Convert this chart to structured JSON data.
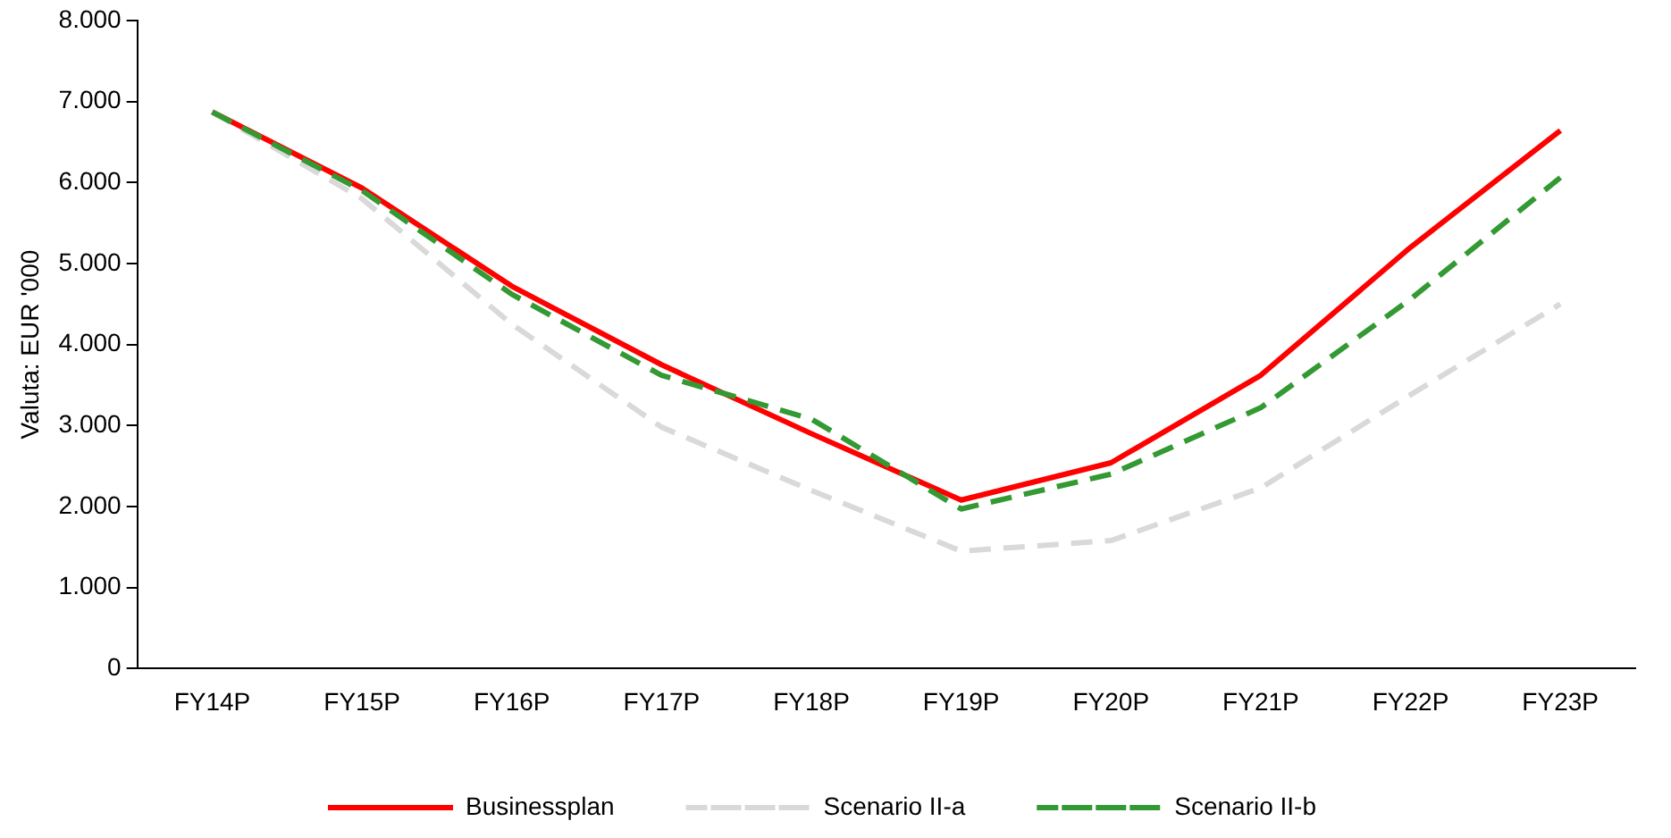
{
  "chart_data": {
    "type": "line",
    "ylabel": "Valuta: EUR '000",
    "categories": [
      "FY14P",
      "FY15P",
      "FY16P",
      "FY17P",
      "FY18P",
      "FY19P",
      "FY20P",
      "FY21P",
      "FY22P",
      "FY23P"
    ],
    "series": [
      {
        "name": "Businessplan",
        "color": "#ff0000",
        "line_style": "solid",
        "values": [
          6870,
          5930,
          4720,
          3750,
          2900,
          2080,
          2540,
          3620,
          5200,
          6640
        ]
      },
      {
        "name": "Scenario II-a",
        "color": "#d9d9d9",
        "line_style": "dashed",
        "values": [
          6870,
          5800,
          4250,
          2980,
          2200,
          1450,
          1580,
          2230,
          3380,
          4500
        ]
      },
      {
        "name": "Scenario II-b",
        "color": "#339933",
        "line_style": "dashed",
        "values": [
          6870,
          5900,
          4620,
          3620,
          3080,
          1970,
          2400,
          3220,
          4560,
          6060
        ]
      }
    ],
    "ylim": [
      0,
      8000
    ],
    "yticks": [
      {
        "value": 0,
        "label": "0"
      },
      {
        "value": 1000,
        "label": "1.000"
      },
      {
        "value": 2000,
        "label": "2.000"
      },
      {
        "value": 3000,
        "label": "3.000"
      },
      {
        "value": 4000,
        "label": "4.000"
      },
      {
        "value": 5000,
        "label": "5.000"
      },
      {
        "value": 6000,
        "label": "6.000"
      },
      {
        "value": 7000,
        "label": "7.000"
      },
      {
        "value": 8000,
        "label": "8.000"
      }
    ],
    "grid": false,
    "legend": "bottom",
    "marker": "none"
  }
}
